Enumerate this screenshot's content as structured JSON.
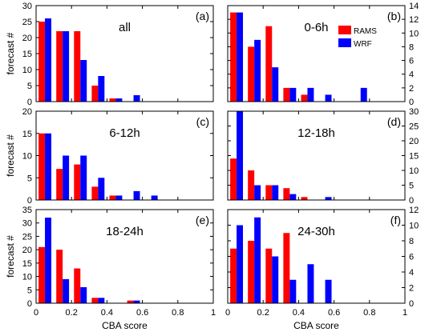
{
  "chart_data": [
    {
      "id": "a",
      "type": "bar",
      "title": "all",
      "tag": "(a)",
      "ylabel": "forecast #",
      "ylabel_side": "left",
      "ylim": [
        0,
        30
      ],
      "yticks": [
        0,
        5,
        10,
        15,
        20,
        25,
        30
      ],
      "x": [
        0.05,
        0.15,
        0.25,
        0.35,
        0.45,
        0.55,
        0.65,
        0.75,
        0.85,
        0.95
      ],
      "series": [
        {
          "name": "RAMS",
          "color": "#ff0000",
          "values": [
            25,
            22,
            22,
            5,
            1,
            0,
            0,
            0,
            0,
            0
          ]
        },
        {
          "name": "WRF",
          "color": "#0000ff",
          "values": [
            26,
            22,
            13,
            8,
            1,
            2,
            0,
            0,
            0,
            0
          ]
        }
      ]
    },
    {
      "id": "b",
      "type": "bar",
      "title": "0-6h",
      "tag": "(b)",
      "ylabel": "",
      "ylabel_side": "right",
      "ylim": [
        0,
        14
      ],
      "yticks": [
        0,
        2,
        4,
        6,
        8,
        10,
        12,
        14
      ],
      "x": [
        0.05,
        0.15,
        0.25,
        0.35,
        0.45,
        0.55,
        0.65,
        0.75,
        0.85,
        0.95
      ],
      "series": [
        {
          "name": "RAMS",
          "color": "#ff0000",
          "values": [
            13,
            8,
            11,
            2,
            1,
            0,
            0,
            0,
            0,
            0
          ]
        },
        {
          "name": "WRF",
          "color": "#0000ff",
          "values": [
            13,
            9,
            5,
            2,
            2,
            1,
            0,
            2,
            0,
            0
          ]
        }
      ],
      "legend": {
        "placement": "top-right",
        "entries": [
          "RAMS",
          "WRF"
        ]
      }
    },
    {
      "id": "c",
      "type": "bar",
      "title": "6-12h",
      "tag": "(c)",
      "ylabel": "forecast #",
      "ylabel_side": "left",
      "ylim": [
        0,
        20
      ],
      "yticks": [
        0,
        5,
        10,
        15,
        20
      ],
      "x": [
        0.05,
        0.15,
        0.25,
        0.35,
        0.45,
        0.55,
        0.65,
        0.75,
        0.85,
        0.95
      ],
      "series": [
        {
          "name": "RAMS",
          "color": "#ff0000",
          "values": [
            15,
            7,
            8,
            3,
            1,
            0,
            0,
            0,
            0,
            0
          ]
        },
        {
          "name": "WRF",
          "color": "#0000ff",
          "values": [
            15,
            10,
            10,
            5,
            1,
            2,
            1,
            0,
            0,
            0
          ]
        }
      ]
    },
    {
      "id": "d",
      "type": "bar",
      "title": "12-18h",
      "tag": "(d)",
      "ylabel": "",
      "ylabel_side": "right",
      "ylim": [
        0,
        30
      ],
      "yticks": [
        0,
        5,
        10,
        15,
        20,
        25,
        30
      ],
      "x": [
        0.05,
        0.15,
        0.25,
        0.35,
        0.45,
        0.55,
        0.65,
        0.75,
        0.85,
        0.95
      ],
      "series": [
        {
          "name": "RAMS",
          "color": "#ff0000",
          "values": [
            14,
            10,
            5,
            4,
            1,
            0,
            0,
            0,
            0,
            0
          ]
        },
        {
          "name": "WRF",
          "color": "#0000ff",
          "values": [
            30,
            5,
            5,
            2,
            0,
            1,
            0,
            0,
            0,
            0
          ]
        }
      ]
    },
    {
      "id": "e",
      "type": "bar",
      "title": "18-24h",
      "tag": "(e)",
      "ylabel": "forecast #",
      "ylabel_side": "left",
      "ylim": [
        0,
        35
      ],
      "yticks": [
        0,
        5,
        10,
        15,
        20,
        25,
        30,
        35
      ],
      "x": [
        0.05,
        0.15,
        0.25,
        0.35,
        0.45,
        0.55,
        0.65,
        0.75,
        0.85,
        0.95
      ],
      "series": [
        {
          "name": "RAMS",
          "color": "#ff0000",
          "values": [
            21,
            20,
            13,
            2,
            0,
            1,
            0,
            0,
            0,
            0
          ]
        },
        {
          "name": "WRF",
          "color": "#0000ff",
          "values": [
            32,
            9,
            6,
            2,
            0,
            1,
            0,
            0,
            0,
            0
          ]
        }
      ]
    },
    {
      "id": "f",
      "type": "bar",
      "title": "24-30h",
      "tag": "(f)",
      "ylabel": "",
      "ylabel_side": "right",
      "ylim": [
        0,
        12
      ],
      "yticks": [
        0,
        2,
        4,
        6,
        8,
        10,
        12
      ],
      "x": [
        0.05,
        0.15,
        0.25,
        0.35,
        0.45,
        0.55,
        0.65,
        0.75,
        0.85,
        0.95
      ],
      "series": [
        {
          "name": "RAMS",
          "color": "#ff0000",
          "values": [
            7,
            8,
            7,
            9,
            0,
            0,
            0,
            0,
            0,
            0
          ]
        },
        {
          "name": "WRF",
          "color": "#0000ff",
          "values": [
            10,
            11,
            6,
            3,
            5,
            3,
            0,
            0,
            0,
            0
          ]
        }
      ]
    }
  ],
  "shared": {
    "xlabel": "CBA score",
    "xlim": [
      0,
      1
    ],
    "xticks": [
      "0",
      "0.2",
      "0.4",
      "0.6",
      "0.8",
      "1"
    ],
    "grid": false
  }
}
